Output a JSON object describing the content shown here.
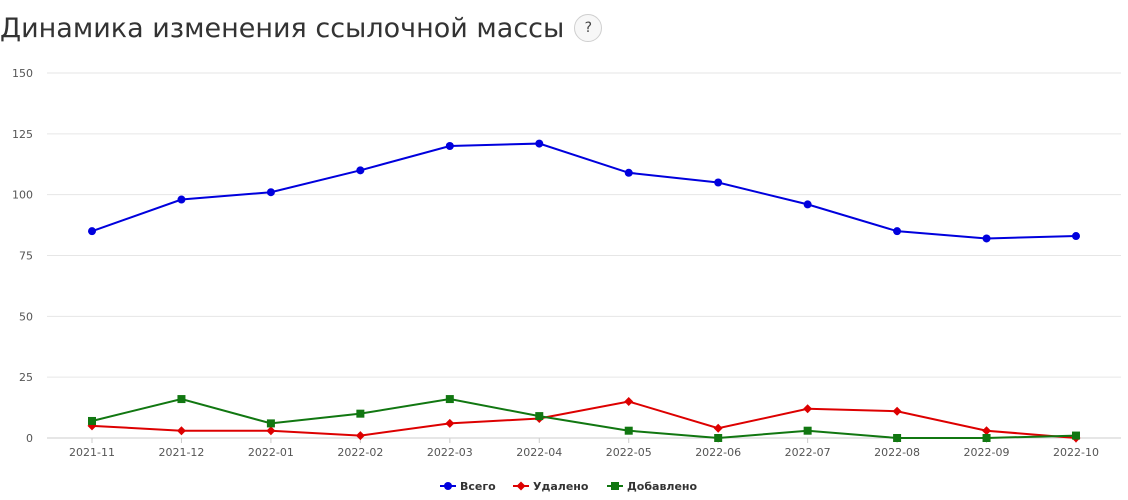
{
  "header": {
    "title": "Динамика изменения ссылочной массы",
    "help_label": "?"
  },
  "chart_data": {
    "type": "line",
    "categories": [
      "2021-11",
      "2021-12",
      "2022-01",
      "2022-02",
      "2022-03",
      "2022-04",
      "2022-05",
      "2022-06",
      "2022-07",
      "2022-08",
      "2022-09",
      "2022-10"
    ],
    "ylim": [
      0,
      150
    ],
    "yticks": [
      0,
      25,
      50,
      75,
      100,
      125,
      150
    ],
    "grid": true,
    "legend_position": "bottom-center",
    "series": [
      {
        "name": "Всего",
        "color": "#0000dd",
        "marker": "circle",
        "values": [
          85,
          98,
          101,
          110,
          120,
          121,
          109,
          105,
          96,
          85,
          82,
          83
        ]
      },
      {
        "name": "Удалено",
        "color": "#dd0000",
        "marker": "diamond",
        "values": [
          5,
          3,
          3,
          1,
          6,
          8,
          15,
          4,
          12,
          11,
          3,
          0
        ]
      },
      {
        "name": "Добавлено",
        "color": "#117711",
        "marker": "square",
        "values": [
          7,
          16,
          6,
          10,
          16,
          9,
          3,
          0,
          3,
          0,
          0,
          1
        ]
      }
    ]
  }
}
